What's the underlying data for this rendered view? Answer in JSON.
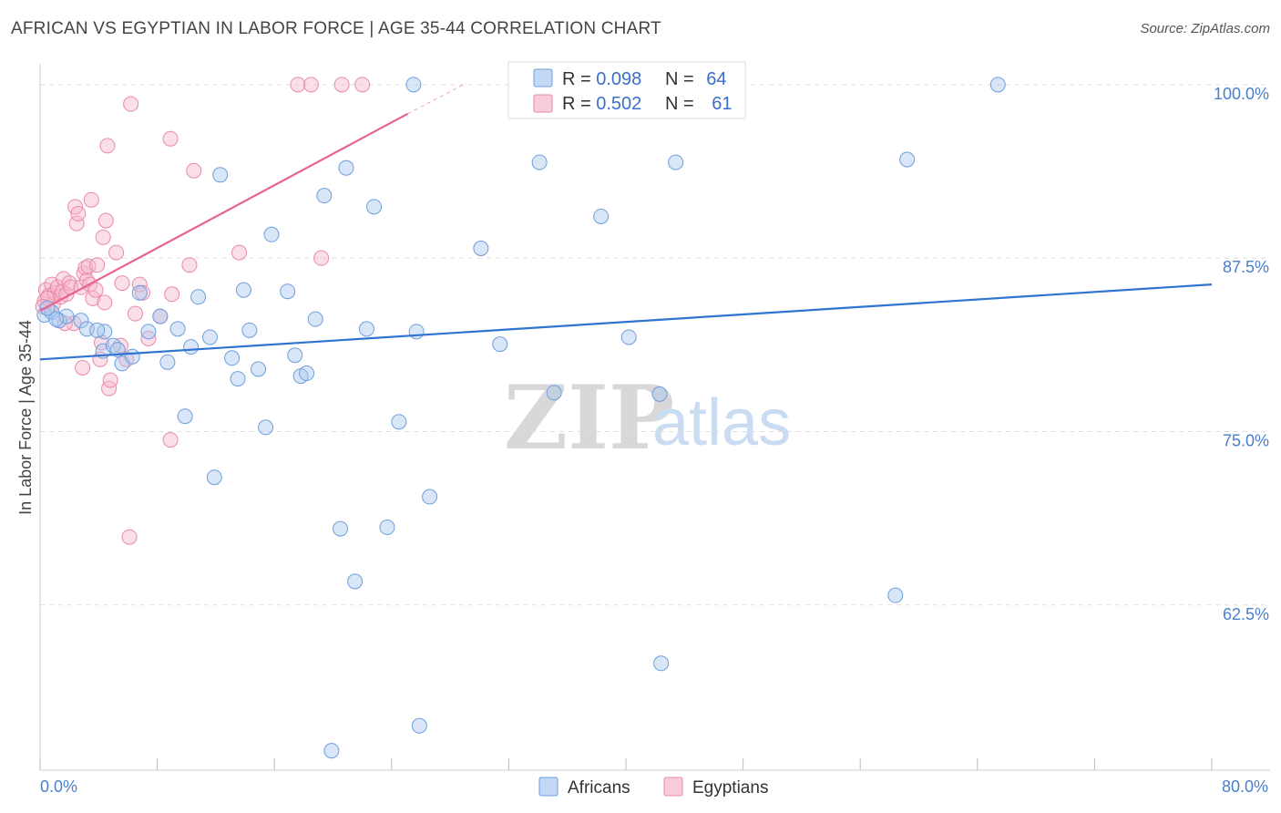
{
  "header": {
    "title": "AFRICAN VS EGYPTIAN IN LABOR FORCE | AGE 35-44 CORRELATION CHART",
    "source": "Source: ZipAtlas.com"
  },
  "watermark": {
    "zip": "ZIP",
    "atlas": "atlas"
  },
  "colors": {
    "blue_fill": "#a9c8ef",
    "blue_stroke": "#6f9fdc",
    "blue_line": "#2f74d0",
    "pink_fill": "#f7b7cb",
    "pink_stroke": "#ea8aa8",
    "pink_line": "#e8648d",
    "axis_text": "#4a7fcc",
    "grid": "#dddddd"
  },
  "legend": {
    "rows": [
      {
        "r_label": "R = ",
        "r_value": "0.098",
        "n_label": "N = ",
        "n_value": "64"
      },
      {
        "r_label": "R = ",
        "r_value": "0.502",
        "n_label": "N = ",
        "n_value": "61"
      }
    ]
  },
  "bottom_legend": {
    "series1": "Africans",
    "series2": "Egyptians"
  },
  "chart_data": {
    "type": "scatter",
    "title": "AFRICAN VS EGYPTIAN IN LABOR FORCE | AGE 35-44 CORRELATION CHART",
    "xlabel": "",
    "ylabel": "In Labor Force | Age 35-44",
    "xlim": [
      0,
      80
    ],
    "ylim": [
      50.6,
      101.5
    ],
    "x_tick_labels": [
      "0.0%",
      "80.0%"
    ],
    "y_ticks": [
      62.5,
      75.0,
      87.5,
      100.0
    ],
    "y_tick_labels": [
      "62.5%",
      "75.0%",
      "87.5%",
      "100.0%"
    ],
    "series": [
      {
        "name": "Africans",
        "r": 0.098,
        "n": 64,
        "trend": {
          "x": [
            0,
            80
          ],
          "y": [
            80.2,
            85.6
          ]
        },
        "points": [
          [
            0.3,
            83.4
          ],
          [
            0.8,
            83.6
          ],
          [
            1.3,
            83.0
          ],
          [
            1.8,
            83.3
          ],
          [
            2.8,
            83.0
          ],
          [
            3.2,
            82.4
          ],
          [
            4.4,
            82.2
          ],
          [
            4.3,
            80.8
          ],
          [
            5.0,
            81.2
          ],
          [
            5.3,
            80.9
          ],
          [
            5.6,
            79.9
          ],
          [
            6.3,
            80.4
          ],
          [
            6.8,
            85.0
          ],
          [
            7.4,
            82.2
          ],
          [
            8.2,
            83.3
          ],
          [
            8.7,
            80.0
          ],
          [
            9.4,
            82.4
          ],
          [
            9.9,
            76.1
          ],
          [
            10.3,
            81.1
          ],
          [
            10.8,
            84.7
          ],
          [
            11.6,
            81.8
          ],
          [
            11.9,
            71.7
          ],
          [
            12.3,
            93.5
          ],
          [
            13.1,
            80.3
          ],
          [
            13.5,
            78.8
          ],
          [
            13.9,
            85.2
          ],
          [
            14.3,
            82.3
          ],
          [
            14.9,
            79.5
          ],
          [
            15.4,
            75.3
          ],
          [
            15.8,
            89.2
          ],
          [
            16.9,
            85.1
          ],
          [
            17.4,
            80.5
          ],
          [
            17.8,
            79.0
          ],
          [
            18.2,
            79.2
          ],
          [
            18.8,
            83.1
          ],
          [
            19.4,
            92.0
          ],
          [
            19.9,
            52.0
          ],
          [
            20.5,
            68.0
          ],
          [
            20.9,
            94.0
          ],
          [
            21.5,
            64.2
          ],
          [
            22.3,
            82.4
          ],
          [
            22.8,
            91.2
          ],
          [
            23.7,
            68.1
          ],
          [
            24.5,
            75.7
          ],
          [
            25.5,
            100.0
          ],
          [
            25.7,
            82.2
          ],
          [
            25.9,
            53.8
          ],
          [
            26.6,
            70.3
          ],
          [
            30.1,
            88.2
          ],
          [
            31.4,
            81.3
          ],
          [
            32.5,
            100.0
          ],
          [
            34.1,
            94.4
          ],
          [
            35.1,
            77.8
          ],
          [
            38.3,
            90.5
          ],
          [
            40.2,
            81.8
          ],
          [
            42.3,
            77.7
          ],
          [
            42.4,
            58.3
          ],
          [
            43.4,
            94.4
          ],
          [
            58.4,
            63.2
          ],
          [
            59.2,
            94.6
          ],
          [
            65.4,
            100.0
          ],
          [
            1.1,
            83.1
          ],
          [
            3.9,
            82.3
          ],
          [
            0.5,
            83.9
          ]
        ]
      },
      {
        "name": "Egyptians",
        "r": 0.502,
        "n": 61,
        "trend": {
          "x": [
            0,
            25.1
          ],
          "y": [
            83.7,
            97.9
          ]
        },
        "trend_dashed": {
          "x": [
            25.1,
            29.1
          ],
          "y": [
            97.9,
            100.1
          ]
        },
        "points": [
          [
            0.3,
            84.4
          ],
          [
            0.4,
            85.2
          ],
          [
            0.6,
            84.8
          ],
          [
            0.8,
            85.6
          ],
          [
            0.9,
            84.2
          ],
          [
            1.0,
            85.0
          ],
          [
            1.2,
            85.4
          ],
          [
            1.4,
            84.7
          ],
          [
            1.5,
            85.1
          ],
          [
            1.6,
            86.0
          ],
          [
            1.8,
            84.9
          ],
          [
            2.0,
            85.7
          ],
          [
            2.1,
            85.4
          ],
          [
            2.3,
            82.8
          ],
          [
            2.4,
            91.2
          ],
          [
            2.5,
            90.0
          ],
          [
            2.6,
            90.7
          ],
          [
            2.8,
            85.4
          ],
          [
            2.9,
            79.6
          ],
          [
            3.0,
            86.4
          ],
          [
            3.1,
            86.8
          ],
          [
            3.2,
            85.9
          ],
          [
            3.3,
            86.9
          ],
          [
            3.4,
            85.6
          ],
          [
            3.5,
            91.7
          ],
          [
            3.6,
            84.6
          ],
          [
            3.8,
            85.2
          ],
          [
            3.9,
            87.0
          ],
          [
            4.1,
            80.2
          ],
          [
            4.2,
            81.4
          ],
          [
            4.3,
            89.0
          ],
          [
            4.4,
            84.3
          ],
          [
            4.5,
            90.2
          ],
          [
            4.6,
            95.6
          ],
          [
            4.7,
            78.1
          ],
          [
            4.8,
            78.7
          ],
          [
            5.2,
            87.9
          ],
          [
            5.5,
            81.2
          ],
          [
            5.6,
            85.7
          ],
          [
            5.9,
            80.2
          ],
          [
            6.2,
            98.6
          ],
          [
            6.1,
            67.4
          ],
          [
            6.5,
            83.5
          ],
          [
            6.8,
            85.6
          ],
          [
            7.0,
            85.0
          ],
          [
            7.4,
            81.7
          ],
          [
            8.2,
            83.3
          ],
          [
            8.9,
            96.1
          ],
          [
            8.9,
            74.4
          ],
          [
            9.0,
            84.9
          ],
          [
            10.2,
            87.0
          ],
          [
            10.5,
            93.8
          ],
          [
            13.6,
            87.9
          ],
          [
            17.6,
            100.0
          ],
          [
            18.5,
            100.0
          ],
          [
            19.2,
            87.5
          ],
          [
            20.6,
            100.0
          ],
          [
            22.0,
            100.0
          ],
          [
            0.5,
            84.6
          ],
          [
            1.7,
            82.8
          ],
          [
            0.2,
            84.0
          ]
        ]
      }
    ]
  }
}
